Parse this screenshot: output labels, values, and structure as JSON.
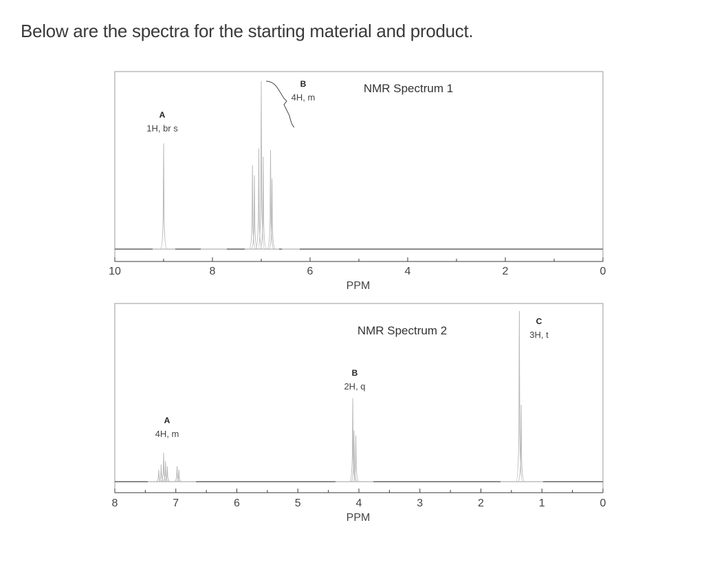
{
  "heading": "Below are the spectra for the starting material and product.",
  "chart_data": [
    {
      "type": "line",
      "title": "NMR Spectrum 1",
      "xlabel": "PPM",
      "xlim": [
        10,
        0
      ],
      "x_reversed": true,
      "ticks": [
        "10",
        "8",
        "6",
        "4",
        "2",
        "0"
      ],
      "tick_values": [
        10,
        8,
        6,
        4,
        2,
        0
      ],
      "minor_ticks": [
        9,
        7,
        5,
        3,
        1
      ],
      "peaks": [
        {
          "letter": "A",
          "desc": "1H, br s",
          "ppm": 9.0,
          "height": 0.63
        },
        {
          "letter": "B",
          "desc": "4H, m",
          "ppm": 7.0,
          "height": 1.0
        }
      ],
      "signals": [
        {
          "ppm": 9.0,
          "height": 0.63
        },
        {
          "ppm": 7.18,
          "height": 0.5
        },
        {
          "ppm": 7.14,
          "height": 0.44
        },
        {
          "ppm": 7.05,
          "height": 0.6
        },
        {
          "ppm": 7.0,
          "height": 1.0
        },
        {
          "ppm": 6.96,
          "height": 0.55
        },
        {
          "ppm": 6.81,
          "height": 0.59
        },
        {
          "ppm": 6.78,
          "height": 0.42
        }
      ]
    },
    {
      "type": "line",
      "title": "NMR Spectrum 2",
      "xlabel": "PPM",
      "xlim": [
        8,
        0
      ],
      "x_reversed": true,
      "ticks": [
        "8",
        "7",
        "6",
        "5",
        "4",
        "3",
        "2",
        "1",
        "0"
      ],
      "tick_values": [
        8,
        7,
        6,
        5,
        4,
        3,
        2,
        1,
        0
      ],
      "minor_ticks": [
        7.5,
        6.5,
        5.5,
        4.5,
        3.5,
        2.5,
        1.5,
        0.5
      ],
      "peaks": [
        {
          "letter": "A",
          "desc": "4H, m",
          "ppm": 7.2,
          "height": 0.18
        },
        {
          "letter": "B",
          "desc": "2H, q",
          "ppm": 4.1,
          "height": 0.49
        },
        {
          "letter": "C",
          "desc": "3H, t",
          "ppm": 1.35,
          "height": 1.0
        }
      ],
      "signals": [
        {
          "ppm": 7.28,
          "height": 0.07
        },
        {
          "ppm": 7.24,
          "height": 0.1
        },
        {
          "ppm": 7.2,
          "height": 0.17
        },
        {
          "ppm": 7.17,
          "height": 0.12
        },
        {
          "ppm": 7.14,
          "height": 0.09
        },
        {
          "ppm": 6.98,
          "height": 0.09
        },
        {
          "ppm": 6.95,
          "height": 0.07
        },
        {
          "ppm": 4.1,
          "height": 0.49
        },
        {
          "ppm": 4.08,
          "height": 0.3
        },
        {
          "ppm": 4.05,
          "height": 0.27
        },
        {
          "ppm": 1.37,
          "height": 1.0
        },
        {
          "ppm": 1.34,
          "height": 0.45
        }
      ]
    }
  ]
}
